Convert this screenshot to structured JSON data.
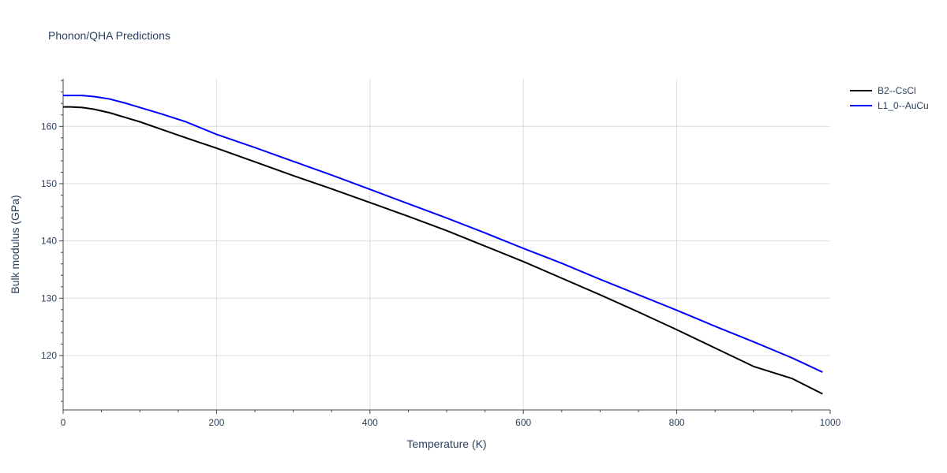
{
  "chart_data": {
    "type": "line",
    "title": "Phonon/QHA Predictions",
    "xlabel": "Temperature (K)",
    "ylabel": "Bulk modulus (GPa)",
    "xlim": [
      0,
      1000
    ],
    "ylim": [
      110.5,
      168.3
    ],
    "xticks": [
      0,
      200,
      400,
      600,
      800,
      1000
    ],
    "yticks": [
      120,
      130,
      140,
      150,
      160
    ],
    "grid": true,
    "legend_position": "top-right",
    "series": [
      {
        "name": "B2--CsCl",
        "color": "#000000",
        "x": [
          0,
          10,
          25,
          40,
          60,
          80,
          100,
          130,
          160,
          200,
          250,
          300,
          350,
          400,
          450,
          500,
          550,
          600,
          650,
          700,
          750,
          800,
          850,
          900,
          950,
          990
        ],
        "y": [
          163.4,
          163.4,
          163.3,
          163.0,
          162.4,
          161.6,
          160.8,
          159.4,
          158.0,
          156.2,
          153.8,
          151.4,
          149.1,
          146.7,
          144.3,
          141.8,
          139.1,
          136.4,
          133.5,
          130.6,
          127.6,
          124.5,
          121.3,
          118.1,
          116.0,
          113.3
        ]
      },
      {
        "name": "L1_0--AuCu",
        "color": "#0000ff",
        "x": [
          0,
          10,
          25,
          40,
          60,
          80,
          100,
          130,
          160,
          200,
          250,
          300,
          350,
          400,
          450,
          500,
          550,
          600,
          650,
          700,
          750,
          800,
          850,
          900,
          950,
          990
        ],
        "y": [
          165.4,
          165.4,
          165.4,
          165.2,
          164.8,
          164.1,
          163.3,
          162.1,
          160.8,
          158.6,
          156.3,
          153.9,
          151.5,
          149.0,
          146.5,
          144.0,
          141.4,
          138.7,
          136.1,
          133.3,
          130.6,
          127.9,
          125.1,
          122.4,
          119.6,
          117.1
        ]
      }
    ]
  }
}
